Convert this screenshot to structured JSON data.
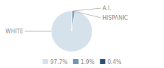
{
  "chart_data": {
    "type": "pie",
    "values": [
      97.7,
      1.9,
      0.4
    ],
    "categories": [
      "97.7%",
      "1.9%",
      "0.4%"
    ],
    "colors": [
      "#d5e2ec",
      "#7096b0",
      "#2d4e6e"
    ],
    "annotations": [
      "WHITE",
      "A.I.",
      "HISPANIC"
    ],
    "legend": "bottom"
  }
}
